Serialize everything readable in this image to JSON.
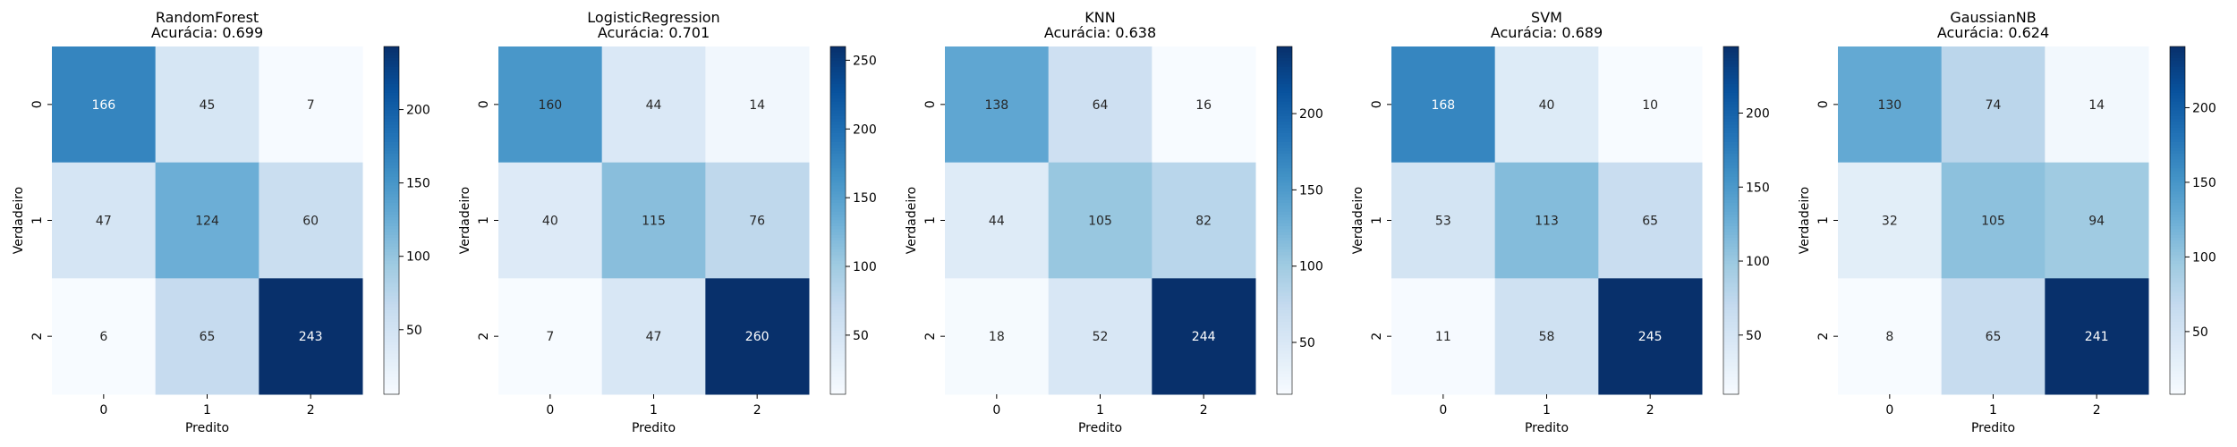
{
  "chart_data": [
    {
      "type": "heatmap",
      "title": [
        "RandomForest",
        "Acurácia: 0.699"
      ],
      "xlabel": "Predito",
      "ylabel": "Verdadeiro",
      "x_ticks": [
        "0",
        "1",
        "2"
      ],
      "y_ticks": [
        "0",
        "1",
        "2"
      ],
      "matrix": [
        [
          166,
          45,
          7
        ],
        [
          47,
          124,
          60
        ],
        [
          6,
          65,
          243
        ]
      ],
      "colorbar": {
        "min": 6,
        "max": 243,
        "ticks": [
          50,
          100,
          150,
          200
        ]
      }
    },
    {
      "type": "heatmap",
      "title": [
        "LogisticRegression",
        "Acurácia: 0.701"
      ],
      "xlabel": "Predito",
      "ylabel": "Verdadeiro",
      "x_ticks": [
        "0",
        "1",
        "2"
      ],
      "y_ticks": [
        "0",
        "1",
        "2"
      ],
      "matrix": [
        [
          160,
          44,
          14
        ],
        [
          40,
          115,
          76
        ],
        [
          7,
          47,
          260
        ]
      ],
      "colorbar": {
        "min": 7,
        "max": 260,
        "ticks": [
          50,
          100,
          150,
          200,
          250
        ]
      }
    },
    {
      "type": "heatmap",
      "title": [
        "KNN",
        "Acurácia: 0.638"
      ],
      "xlabel": "Predito",
      "ylabel": "Verdadeiro",
      "x_ticks": [
        "0",
        "1",
        "2"
      ],
      "y_ticks": [
        "0",
        "1",
        "2"
      ],
      "matrix": [
        [
          138,
          64,
          16
        ],
        [
          44,
          105,
          82
        ],
        [
          18,
          52,
          244
        ]
      ],
      "colorbar": {
        "min": 16,
        "max": 244,
        "ticks": [
          50,
          100,
          150,
          200
        ]
      }
    },
    {
      "type": "heatmap",
      "title": [
        "SVM",
        "Acurácia: 0.689"
      ],
      "xlabel": "Predito",
      "ylabel": "Verdadeiro",
      "x_ticks": [
        "0",
        "1",
        "2"
      ],
      "y_ticks": [
        "0",
        "1",
        "2"
      ],
      "matrix": [
        [
          168,
          40,
          10
        ],
        [
          53,
          113,
          65
        ],
        [
          11,
          58,
          245
        ]
      ],
      "colorbar": {
        "min": 10,
        "max": 245,
        "ticks": [
          50,
          100,
          150,
          200
        ]
      }
    },
    {
      "type": "heatmap",
      "title": [
        "GaussianNB",
        "Acurácia: 0.624"
      ],
      "xlabel": "Predito",
      "ylabel": "Verdadeiro",
      "x_ticks": [
        "0",
        "1",
        "2"
      ],
      "y_ticks": [
        "0",
        "1",
        "2"
      ],
      "matrix": [
        [
          130,
          74,
          14
        ],
        [
          32,
          105,
          94
        ],
        [
          8,
          65,
          241
        ]
      ],
      "colorbar": {
        "min": 8,
        "max": 241,
        "ticks": [
          50,
          100,
          150,
          200
        ]
      }
    }
  ],
  "colormap": "Blues",
  "colormap_stops": [
    "#f7fbff",
    "#deebf7",
    "#c6dbef",
    "#9ecae1",
    "#6baed6",
    "#4292c6",
    "#2171b5",
    "#08519c",
    "#08306b"
  ]
}
